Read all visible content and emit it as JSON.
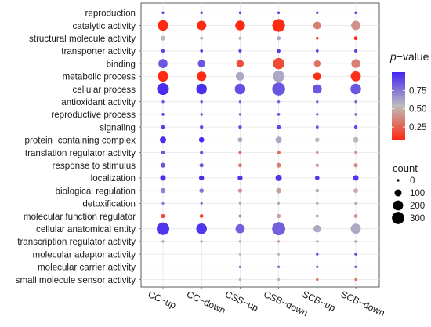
{
  "chart_data": {
    "type": "scatter",
    "subtype": "bubble-dot-plot",
    "title": "",
    "xlabel": "",
    "ylabel": "",
    "grid": true,
    "legend_position": "right",
    "categories_x": [
      "CC−up",
      "CC−down",
      "CSS−up",
      "CSS−down",
      "SCB−up",
      "SCB−down"
    ],
    "categories_y": [
      "reproduction",
      "catalytic activity",
      "structural molecule activity",
      "transporter activity",
      "binding",
      "metabolic process",
      "cellular process",
      "antioxidant activity",
      "reproductive process",
      "signaling",
      "protein−containing complex",
      "translation regulator activity",
      "response to stimulus",
      "localization",
      "biological regulation",
      "detoxification",
      "molecular function regulator",
      "cellular anatomical entity",
      "transcription regulator activity",
      "molecular adaptor activity",
      "molecular carrier activity",
      "small molecule sensor activity"
    ],
    "color_legend": {
      "title_prefix": "p",
      "title_suffix": "−value",
      "ticks": [
        "0.75",
        "0.50",
        "0.25"
      ],
      "tick_values": [
        0.75,
        0.5,
        0.25
      ],
      "range": [
        0.08,
        1.0
      ],
      "colors": [
        "#ff2a12",
        "#bdbdbd",
        "#4225f2"
      ]
    },
    "size_legend": {
      "title": "count",
      "labels": [
        "0",
        "100",
        "200",
        "300"
      ],
      "values": [
        0,
        100,
        200,
        300
      ]
    },
    "points": [
      {
        "x": "CC−up",
        "y": "reproduction",
        "count": 8,
        "p": 0.92
      },
      {
        "x": "CC−up",
        "y": "catalytic activity",
        "count": 200,
        "p": 0.05
      },
      {
        "x": "CC−up",
        "y": "structural molecule activity",
        "count": 40,
        "p": 0.55
      },
      {
        "x": "CC−up",
        "y": "transporter activity",
        "count": 20,
        "p": 0.92
      },
      {
        "x": "CC−up",
        "y": "binding",
        "count": 150,
        "p": 0.85
      },
      {
        "x": "CC−up",
        "y": "metabolic process",
        "count": 200,
        "p": 0.05
      },
      {
        "x": "CC−up",
        "y": "cellular process",
        "count": 250,
        "p": 0.97
      },
      {
        "x": "CC−up",
        "y": "antioxidant activity",
        "count": 12,
        "p": 0.85
      },
      {
        "x": "CC−up",
        "y": "reproductive process",
        "count": 15,
        "p": 0.9
      },
      {
        "x": "CC−up",
        "y": "signaling",
        "count": 25,
        "p": 0.92
      },
      {
        "x": "CC−up",
        "y": "protein−containing complex",
        "count": 70,
        "p": 0.97
      },
      {
        "x": "CC−up",
        "y": "translation regulator activity",
        "count": 25,
        "p": 0.85
      },
      {
        "x": "CC−up",
        "y": "response to stimulus",
        "count": 40,
        "p": 0.85
      },
      {
        "x": "CC−up",
        "y": "localization",
        "count": 55,
        "p": 0.97
      },
      {
        "x": "CC−up",
        "y": "biological regulation",
        "count": 45,
        "p": 0.72
      },
      {
        "x": "CC−up",
        "y": "detoxification",
        "count": 12,
        "p": 0.75
      },
      {
        "x": "CC−up",
        "y": "molecular function regulator",
        "count": 30,
        "p": 0.18
      },
      {
        "x": "CC−up",
        "y": "cellular anatomical entity",
        "count": 280,
        "p": 0.95
      },
      {
        "x": "CC−up",
        "y": "transcription regulator activity",
        "count": 10,
        "p": 0.6
      },
      {
        "x": "CC−down",
        "y": "reproduction",
        "count": 8,
        "p": 0.92
      },
      {
        "x": "CC−down",
        "y": "catalytic activity",
        "count": 160,
        "p": 0.08
      },
      {
        "x": "CC−down",
        "y": "structural molecule activity",
        "count": 15,
        "p": 0.6
      },
      {
        "x": "CC−down",
        "y": "transporter activity",
        "count": 15,
        "p": 0.92
      },
      {
        "x": "CC−down",
        "y": "binding",
        "count": 100,
        "p": 0.85
      },
      {
        "x": "CC−down",
        "y": "metabolic process",
        "count": 160,
        "p": 0.05
      },
      {
        "x": "CC−down",
        "y": "cellular process",
        "count": 200,
        "p": 0.97
      },
      {
        "x": "CC−down",
        "y": "antioxidant activity",
        "count": 10,
        "p": 0.85
      },
      {
        "x": "CC−down",
        "y": "reproductive process",
        "count": 12,
        "p": 0.9
      },
      {
        "x": "CC−down",
        "y": "signaling",
        "count": 20,
        "p": 0.92
      },
      {
        "x": "CC−down",
        "y": "protein−containing complex",
        "count": 50,
        "p": 0.97
      },
      {
        "x": "CC−down",
        "y": "translation regulator activity",
        "count": 20,
        "p": 0.85
      },
      {
        "x": "CC−down",
        "y": "response to stimulus",
        "count": 30,
        "p": 0.85
      },
      {
        "x": "CC−down",
        "y": "localization",
        "count": 45,
        "p": 0.97
      },
      {
        "x": "CC−down",
        "y": "biological regulation",
        "count": 35,
        "p": 0.75
      },
      {
        "x": "CC−down",
        "y": "detoxification",
        "count": 10,
        "p": 0.75
      },
      {
        "x": "CC−down",
        "y": "molecular function regulator",
        "count": 25,
        "p": 0.15
      },
      {
        "x": "CC−down",
        "y": "cellular anatomical entity",
        "count": 200,
        "p": 0.95
      },
      {
        "x": "CC−down",
        "y": "transcription regulator activity",
        "count": 8,
        "p": 0.6
      },
      {
        "x": "CSS−up",
        "y": "reproduction",
        "count": 8,
        "p": 0.92
      },
      {
        "x": "CSS−up",
        "y": "catalytic activity",
        "count": 170,
        "p": 0.06
      },
      {
        "x": "CSS−up",
        "y": "structural molecule activity",
        "count": 20,
        "p": 0.55
      },
      {
        "x": "CSS−up",
        "y": "transporter activity",
        "count": 18,
        "p": 0.92
      },
      {
        "x": "CSS−up",
        "y": "binding",
        "count": 100,
        "p": 0.2
      },
      {
        "x": "CSS−up",
        "y": "metabolic process",
        "count": 130,
        "p": 0.6
      },
      {
        "x": "CSS−up",
        "y": "cellular process",
        "count": 200,
        "p": 0.87
      },
      {
        "x": "CSS−up",
        "y": "antioxidant activity",
        "count": 10,
        "p": 0.8
      },
      {
        "x": "CSS−up",
        "y": "reproductive process",
        "count": 12,
        "p": 0.82
      },
      {
        "x": "CSS−up",
        "y": "signaling",
        "count": 20,
        "p": 0.9
      },
      {
        "x": "CSS−up",
        "y": "protein−containing complex",
        "count": 40,
        "p": 0.6
      },
      {
        "x": "CSS−up",
        "y": "translation regulator activity",
        "count": 15,
        "p": 0.25
      },
      {
        "x": "CSS−up",
        "y": "response to stimulus",
        "count": 25,
        "p": 0.3
      },
      {
        "x": "CSS−up",
        "y": "localization",
        "count": 45,
        "p": 0.95
      },
      {
        "x": "CSS−up",
        "y": "biological regulation",
        "count": 30,
        "p": 0.4
      },
      {
        "x": "CSS−up",
        "y": "detoxification",
        "count": 10,
        "p": 0.6
      },
      {
        "x": "CSS−up",
        "y": "molecular function regulator",
        "count": 15,
        "p": 0.3
      },
      {
        "x": "CSS−up",
        "y": "cellular anatomical entity",
        "count": 150,
        "p": 0.82
      },
      {
        "x": "CSS−up",
        "y": "transcription regulator activity",
        "count": 8,
        "p": 0.45
      },
      {
        "x": "CSS−up",
        "y": "molecular adaptor activity",
        "count": 5,
        "p": 0.55
      },
      {
        "x": "CSS−up",
        "y": "molecular carrier activity",
        "count": 6,
        "p": 0.75
      },
      {
        "x": "CSS−up",
        "y": "small molecule sensor activity",
        "count": 5,
        "p": 0.55
      },
      {
        "x": "CSS−down",
        "y": "reproduction",
        "count": 8,
        "p": 0.92
      },
      {
        "x": "CSS−down",
        "y": "catalytic activity",
        "count": 290,
        "p": 0.05
      },
      {
        "x": "CSS−down",
        "y": "structural molecule activity",
        "count": 30,
        "p": 0.6
      },
      {
        "x": "CSS−down",
        "y": "transporter activity",
        "count": 25,
        "p": 0.92
      },
      {
        "x": "CSS−down",
        "y": "binding",
        "count": 230,
        "p": 0.18
      },
      {
        "x": "CSS−down",
        "y": "metabolic process",
        "count": 240,
        "p": 0.6
      },
      {
        "x": "CSS−down",
        "y": "cellular process",
        "count": 300,
        "p": 0.85
      },
      {
        "x": "CSS−down",
        "y": "antioxidant activity",
        "count": 12,
        "p": 0.8
      },
      {
        "x": "CSS−down",
        "y": "reproductive process",
        "count": 15,
        "p": 0.85
      },
      {
        "x": "CSS−down",
        "y": "signaling",
        "count": 30,
        "p": 0.9
      },
      {
        "x": "CSS−down",
        "y": "protein−containing complex",
        "count": 70,
        "p": 0.6
      },
      {
        "x": "CSS−down",
        "y": "translation regulator activity",
        "count": 25,
        "p": 0.3
      },
      {
        "x": "CSS−down",
        "y": "response to stimulus",
        "count": 40,
        "p": 0.35
      },
      {
        "x": "CSS−down",
        "y": "localization",
        "count": 70,
        "p": 0.95
      },
      {
        "x": "CSS−down",
        "y": "biological regulation",
        "count": 50,
        "p": 0.45
      },
      {
        "x": "CSS−down",
        "y": "detoxification",
        "count": 12,
        "p": 0.6
      },
      {
        "x": "CSS−down",
        "y": "molecular function regulator",
        "count": 30,
        "p": 0.45
      },
      {
        "x": "CSS−down",
        "y": "cellular anatomical entity",
        "count": 310,
        "p": 0.82
      },
      {
        "x": "CSS−down",
        "y": "transcription regulator activity",
        "count": 10,
        "p": 0.45
      },
      {
        "x": "CSS−down",
        "y": "molecular adaptor activity",
        "count": 6,
        "p": 0.55
      },
      {
        "x": "CSS−down",
        "y": "molecular carrier activity",
        "count": 6,
        "p": 0.75
      },
      {
        "x": "CSS−down",
        "y": "small molecule sensor activity",
        "count": 6,
        "p": 0.55
      },
      {
        "x": "SCB−up",
        "y": "reproduction",
        "count": 8,
        "p": 0.92
      },
      {
        "x": "SCB−up",
        "y": "catalytic activity",
        "count": 110,
        "p": 0.35
      },
      {
        "x": "SCB−up",
        "y": "structural molecule activity",
        "count": 10,
        "p": 0.05
      },
      {
        "x": "SCB−up",
        "y": "transporter activity",
        "count": 15,
        "p": 0.92
      },
      {
        "x": "SCB−up",
        "y": "binding",
        "count": 80,
        "p": 0.3
      },
      {
        "x": "SCB−up",
        "y": "metabolic process",
        "count": 110,
        "p": 0.1
      },
      {
        "x": "SCB−up",
        "y": "cellular process",
        "count": 150,
        "p": 0.85
      },
      {
        "x": "SCB−up",
        "y": "antioxidant activity",
        "count": 8,
        "p": 0.8
      },
      {
        "x": "SCB−up",
        "y": "reproductive process",
        "count": 10,
        "p": 0.82
      },
      {
        "x": "SCB−up",
        "y": "signaling",
        "count": 15,
        "p": 0.9
      },
      {
        "x": "SCB−up",
        "y": "protein−containing complex",
        "count": 35,
        "p": 0.55
      },
      {
        "x": "SCB−up",
        "y": "translation regulator activity",
        "count": 10,
        "p": 0.4
      },
      {
        "x": "SCB−up",
        "y": "response to stimulus",
        "count": 20,
        "p": 0.4
      },
      {
        "x": "SCB−up",
        "y": "localization",
        "count": 35,
        "p": 0.95
      },
      {
        "x": "SCB−up",
        "y": "biological regulation",
        "count": 25,
        "p": 0.5
      },
      {
        "x": "SCB−up",
        "y": "detoxification",
        "count": 8,
        "p": 0.6
      },
      {
        "x": "SCB−up",
        "y": "molecular function regulator",
        "count": 15,
        "p": 0.4
      },
      {
        "x": "SCB−up",
        "y": "cellular anatomical entity",
        "count": 100,
        "p": 0.6
      },
      {
        "x": "SCB−up",
        "y": "transcription regulator activity",
        "count": 6,
        "p": 0.45
      },
      {
        "x": "SCB−up",
        "y": "molecular adaptor activity",
        "count": 5,
        "p": 0.9
      },
      {
        "x": "SCB−up",
        "y": "molecular carrier activity",
        "count": 5,
        "p": 0.8
      },
      {
        "x": "SCB−up",
        "y": "small molecule sensor activity",
        "count": 5,
        "p": 0.3
      },
      {
        "x": "SCB−down",
        "y": "reproduction",
        "count": 8,
        "p": 0.92
      },
      {
        "x": "SCB−down",
        "y": "catalytic activity",
        "count": 150,
        "p": 0.4
      },
      {
        "x": "SCB−down",
        "y": "structural molecule activity",
        "count": 25,
        "p": 0.08
      },
      {
        "x": "SCB−down",
        "y": "transporter activity",
        "count": 18,
        "p": 0.92
      },
      {
        "x": "SCB−down",
        "y": "binding",
        "count": 140,
        "p": 0.35
      },
      {
        "x": "SCB−down",
        "y": "metabolic process",
        "count": 180,
        "p": 0.1
      },
      {
        "x": "SCB−down",
        "y": "cellular process",
        "count": 200,
        "p": 0.85
      },
      {
        "x": "SCB−down",
        "y": "antioxidant activity",
        "count": 10,
        "p": 0.8
      },
      {
        "x": "SCB−down",
        "y": "reproductive process",
        "count": 12,
        "p": 0.82
      },
      {
        "x": "SCB−down",
        "y": "signaling",
        "count": 20,
        "p": 0.9
      },
      {
        "x": "SCB−down",
        "y": "protein−containing complex",
        "count": 55,
        "p": 0.55
      },
      {
        "x": "SCB−down",
        "y": "translation regulator activity",
        "count": 15,
        "p": 0.4
      },
      {
        "x": "SCB−down",
        "y": "response to stimulus",
        "count": 30,
        "p": 0.4
      },
      {
        "x": "SCB−down",
        "y": "localization",
        "count": 55,
        "p": 0.95
      },
      {
        "x": "SCB−down",
        "y": "biological regulation",
        "count": 40,
        "p": 0.5
      },
      {
        "x": "SCB−down",
        "y": "detoxification",
        "count": 10,
        "p": 0.6
      },
      {
        "x": "SCB−down",
        "y": "molecular function regulator",
        "count": 25,
        "p": 0.4
      },
      {
        "x": "SCB−down",
        "y": "cellular anatomical entity",
        "count": 180,
        "p": 0.6
      },
      {
        "x": "SCB−down",
        "y": "transcription regulator activity",
        "count": 8,
        "p": 0.45
      },
      {
        "x": "SCB−down",
        "y": "molecular adaptor activity",
        "count": 6,
        "p": 0.9
      },
      {
        "x": "SCB−down",
        "y": "molecular carrier activity",
        "count": 5,
        "p": 0.8
      },
      {
        "x": "SCB−down",
        "y": "small molecule sensor activity",
        "count": 6,
        "p": 0.3
      }
    ]
  }
}
